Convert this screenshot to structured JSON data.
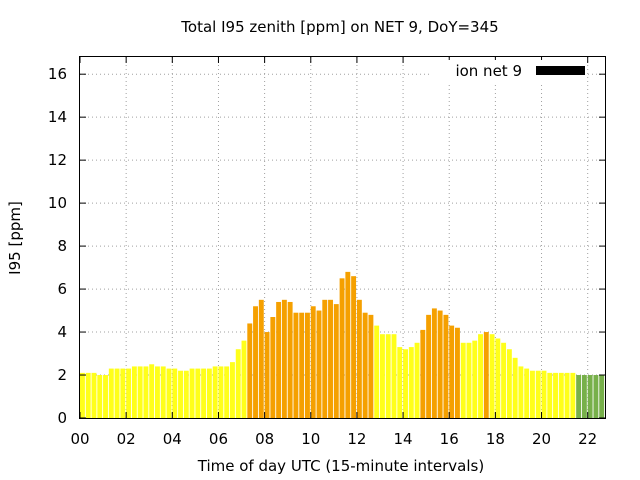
{
  "chart_data": {
    "type": "bar",
    "title": "Total I95 zenith [ppm] on NET 9, DoY=345",
    "xlabel": "Time of day UTC (15-minute intervals)",
    "ylabel": "I95 [ppm]",
    "xlim": [
      0,
      22.75
    ],
    "ylim": [
      0,
      16.8
    ],
    "x_ticks": [
      "00",
      "02",
      "04",
      "06",
      "08",
      "10",
      "12",
      "14",
      "16",
      "18",
      "20",
      "22"
    ],
    "y_ticks": [
      "0",
      "2",
      "4",
      "6",
      "8",
      "10",
      "12",
      "14",
      "16"
    ],
    "grid": true,
    "legend": {
      "label": "ion net 9",
      "color": "#000000",
      "position": "top-right"
    },
    "color_levels": {
      "green": "#77b04a",
      "yellow": "#ffff1a",
      "orange": "#f5a000"
    },
    "bar_interval_hours": 0.25,
    "values": [
      2.1,
      2.1,
      2.1,
      2.0,
      2.0,
      2.3,
      2.3,
      2.3,
      2.3,
      2.4,
      2.4,
      2.4,
      2.5,
      2.4,
      2.4,
      2.3,
      2.3,
      2.2,
      2.2,
      2.3,
      2.3,
      2.3,
      2.3,
      2.4,
      2.4,
      2.4,
      2.6,
      3.2,
      3.6,
      4.4,
      5.2,
      5.5,
      4.0,
      4.7,
      5.4,
      5.5,
      5.4,
      4.9,
      4.9,
      4.9,
      5.2,
      5.0,
      5.5,
      5.5,
      5.3,
      6.5,
      6.8,
      6.6,
      5.5,
      4.9,
      4.8,
      4.3,
      3.9,
      3.9,
      3.9,
      3.3,
      3.2,
      3.3,
      3.5,
      4.1,
      4.8,
      5.1,
      5.0,
      4.8,
      4.3,
      4.2,
      3.5,
      3.5,
      3.6,
      3.9,
      4.0,
      3.9,
      3.7,
      3.5,
      3.2,
      2.8,
      2.4,
      2.3,
      2.2,
      2.2,
      2.2,
      2.1,
      2.1,
      2.1,
      2.1,
      2.1,
      2.0,
      2.0,
      2.0,
      2.0,
      2.0
    ],
    "levels": [
      "yellow",
      "yellow",
      "yellow",
      "yellow",
      "yellow",
      "yellow",
      "yellow",
      "yellow",
      "yellow",
      "yellow",
      "yellow",
      "yellow",
      "yellow",
      "yellow",
      "yellow",
      "yellow",
      "yellow",
      "yellow",
      "yellow",
      "yellow",
      "yellow",
      "yellow",
      "yellow",
      "yellow",
      "yellow",
      "yellow",
      "yellow",
      "yellow",
      "yellow",
      "orange",
      "orange",
      "orange",
      "orange",
      "orange",
      "orange",
      "orange",
      "orange",
      "orange",
      "orange",
      "orange",
      "orange",
      "orange",
      "orange",
      "orange",
      "orange",
      "orange",
      "orange",
      "orange",
      "orange",
      "orange",
      "orange",
      "yellow",
      "yellow",
      "yellow",
      "yellow",
      "yellow",
      "yellow",
      "yellow",
      "yellow",
      "orange",
      "orange",
      "orange",
      "orange",
      "orange",
      "orange",
      "orange",
      "yellow",
      "yellow",
      "yellow",
      "yellow",
      "orange",
      "yellow",
      "yellow",
      "yellow",
      "yellow",
      "yellow",
      "yellow",
      "yellow",
      "yellow",
      "yellow",
      "yellow",
      "yellow",
      "yellow",
      "yellow",
      "yellow",
      "yellow",
      "green",
      "green",
      "green",
      "green",
      "green"
    ]
  }
}
